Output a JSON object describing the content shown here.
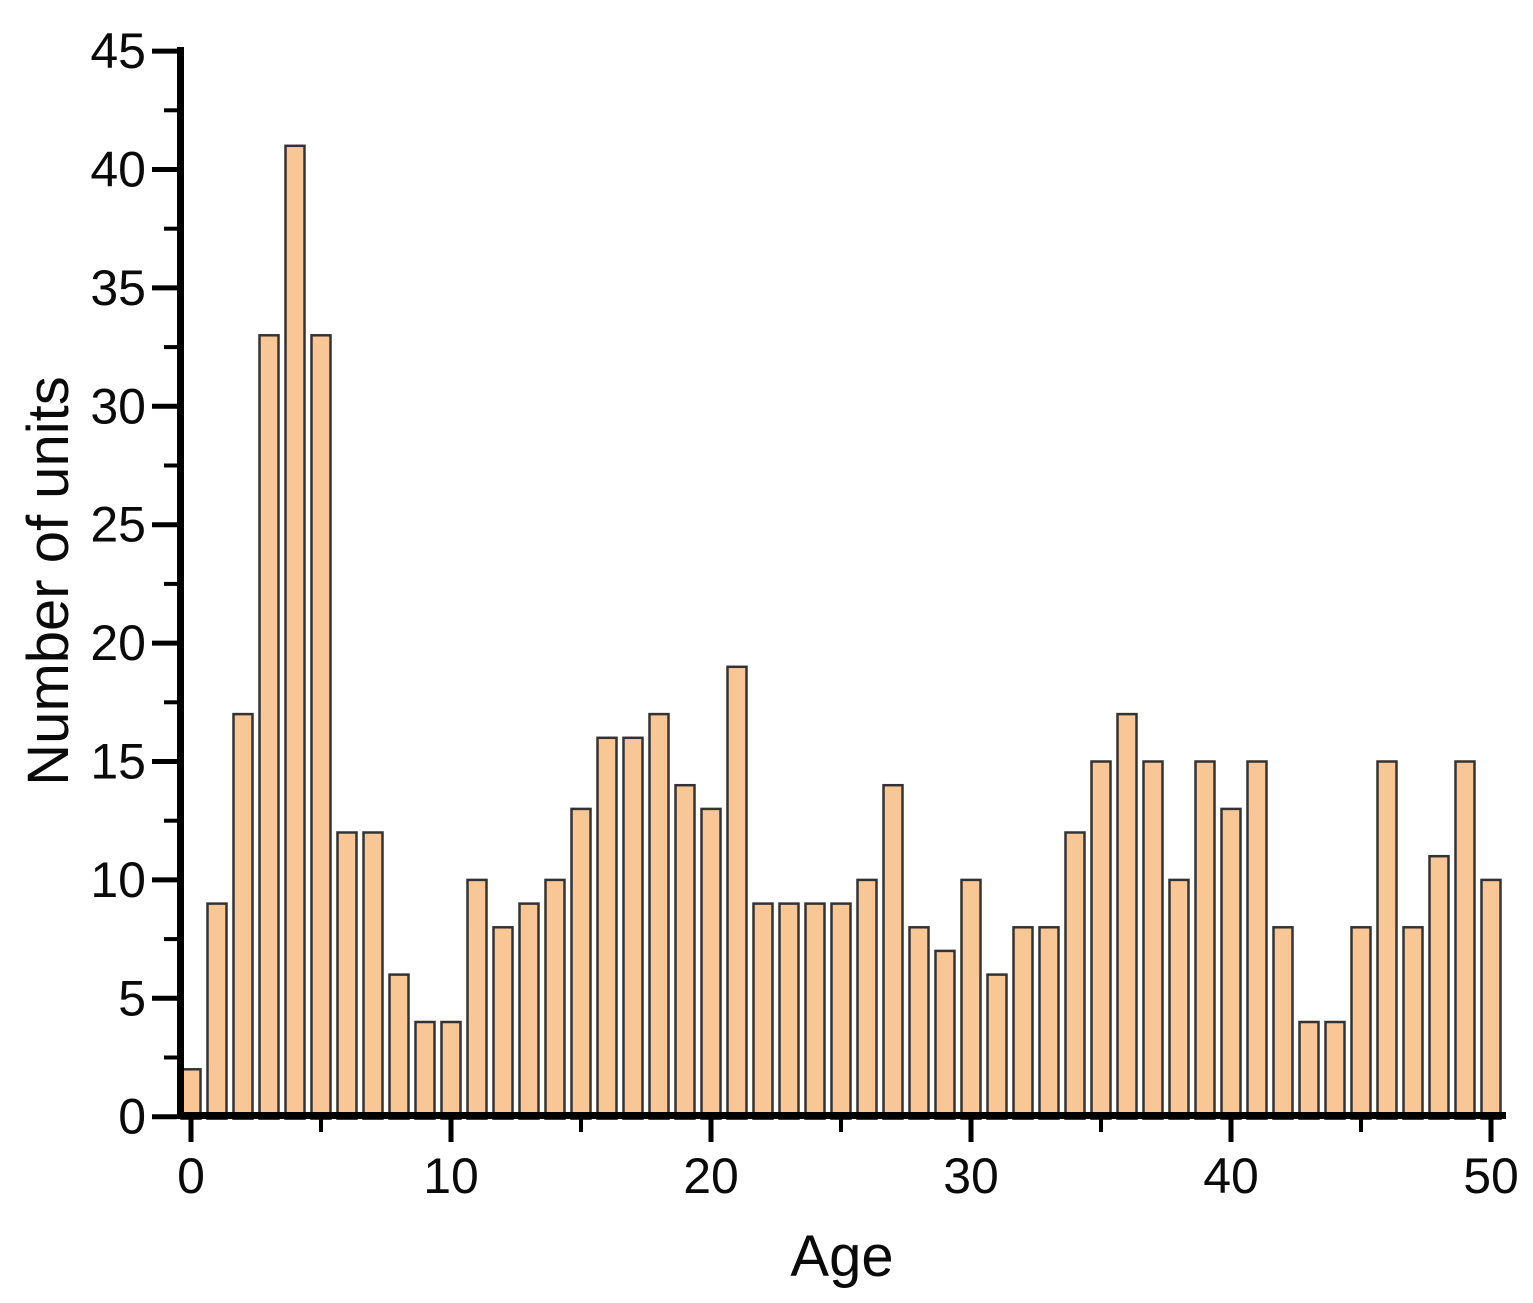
{
  "chart_data": {
    "type": "bar",
    "title": "",
    "xlabel": "Age",
    "ylabel": "Number of units",
    "x": [
      0,
      1,
      2,
      3,
      4,
      5,
      6,
      7,
      8,
      9,
      10,
      11,
      12,
      13,
      14,
      15,
      16,
      17,
      18,
      19,
      20,
      21,
      22,
      23,
      24,
      25,
      26,
      27,
      28,
      29,
      30,
      31,
      32,
      33,
      34,
      35,
      36,
      37,
      38,
      39,
      40,
      41,
      42,
      43,
      44,
      45,
      46,
      47,
      48,
      49,
      50
    ],
    "values": [
      2,
      9,
      17,
      33,
      41,
      33,
      12,
      12,
      6,
      4,
      4,
      10,
      8,
      9,
      10,
      13,
      16,
      16,
      17,
      14,
      13,
      19,
      9,
      9,
      9,
      9,
      10,
      14,
      8,
      7,
      10,
      6,
      8,
      8,
      12,
      15,
      17,
      15,
      10,
      15,
      13,
      15,
      8,
      4,
      4,
      8,
      15,
      8,
      11,
      15,
      10
    ],
    "xlim": [
      -1,
      50.6
    ],
    "ylim": [
      0,
      45
    ],
    "x_major_ticks": [
      0,
      10,
      20,
      30,
      40,
      50
    ],
    "x_major_tick_labels": [
      "0",
      "10",
      "20",
      "30",
      "40",
      "50"
    ],
    "x_minor_ticks": [
      5,
      15,
      25,
      35,
      45
    ],
    "y_major_ticks": [
      0,
      5,
      10,
      15,
      20,
      25,
      30,
      35,
      40,
      45
    ],
    "y_major_tick_labels": [
      "0",
      "5",
      "10",
      "15",
      "20",
      "25",
      "30",
      "35",
      "40",
      "45"
    ],
    "y_minor_ticks": [
      2.5,
      7.5,
      12.5,
      17.5,
      22.5,
      27.5,
      32.5,
      37.5,
      42.5
    ],
    "grid": false,
    "legend": null,
    "colors": {
      "bar_fill": "#F9C795",
      "bar_stroke": "#333333",
      "axis": "#000000",
      "text": "#0a0a0a",
      "background": "#ffffff"
    }
  }
}
